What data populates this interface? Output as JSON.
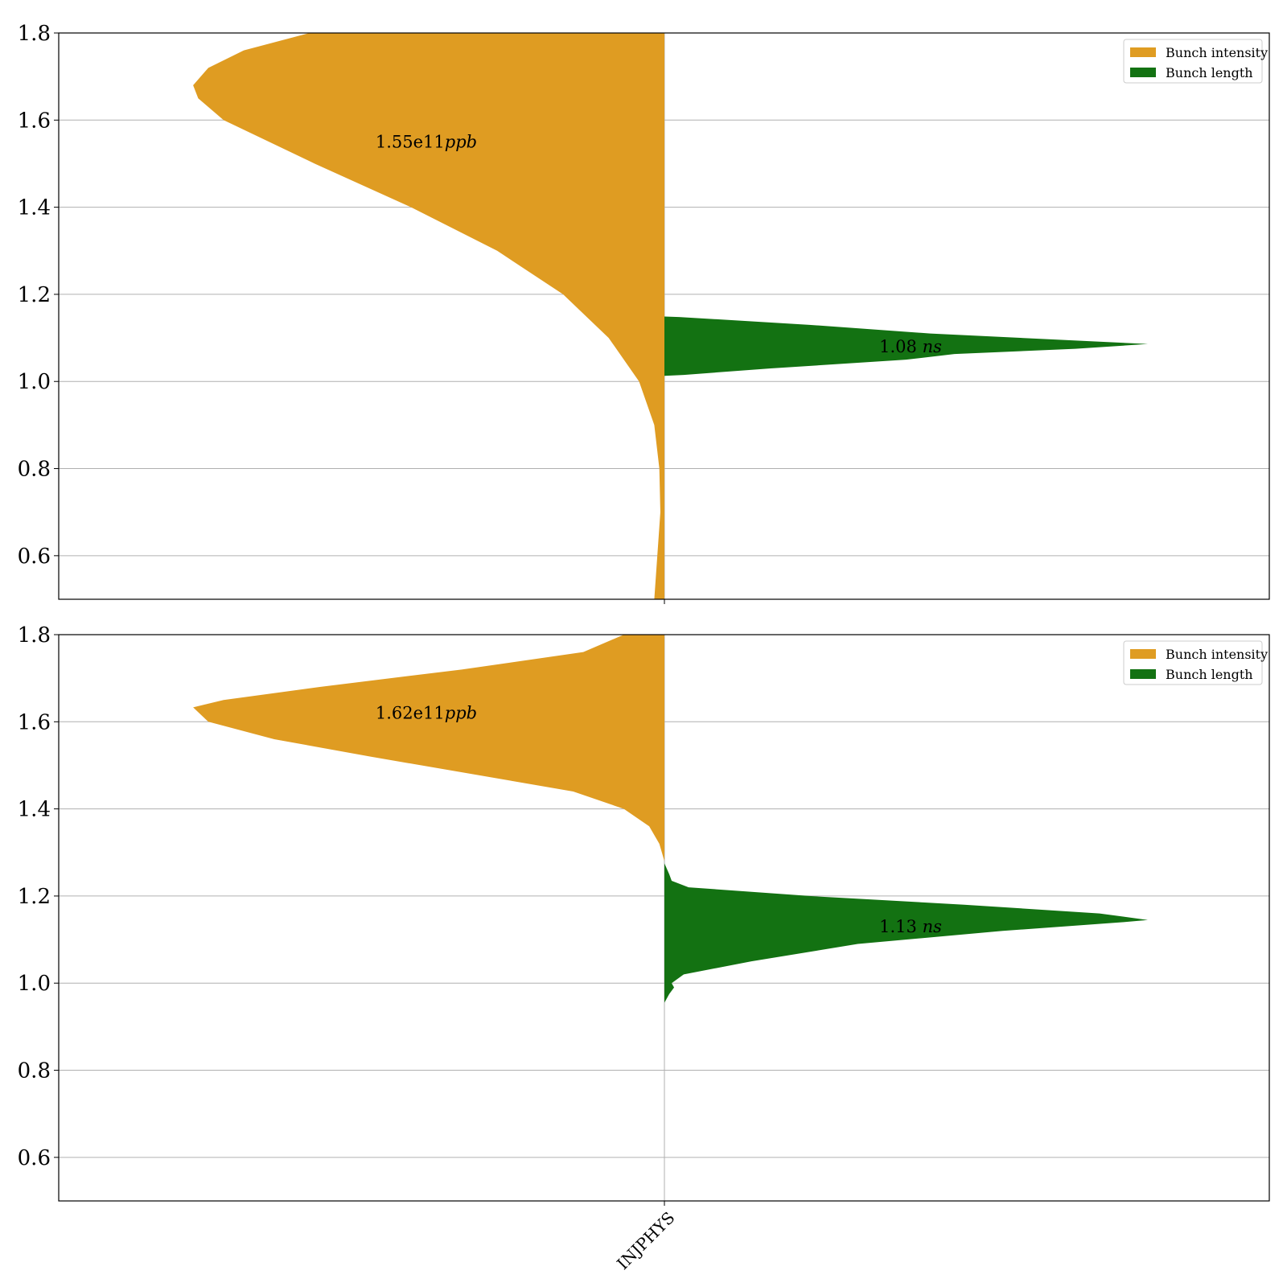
{
  "chart_data": [
    {
      "type": "violin",
      "ylim": [
        0.5,
        1.8
      ],
      "yticks": [
        0.6,
        0.8,
        1.0,
        1.2,
        1.4,
        1.6,
        1.8
      ],
      "categories": [
        ""
      ],
      "grid": true,
      "legend_position": "top-right",
      "series": [
        {
          "name": "Bunch intensity",
          "side": "left",
          "color": "#df9c22",
          "annotation": {
            "value": "1.55e11",
            "unit": "ppb",
            "y": 1.55
          },
          "profile": [
            [
              0.5,
              0.02
            ],
            [
              0.6,
              0.014
            ],
            [
              0.7,
              0.008
            ],
            [
              0.8,
              0.01
            ],
            [
              0.9,
              0.02
            ],
            [
              1.0,
              0.05
            ],
            [
              1.1,
              0.11
            ],
            [
              1.2,
              0.2
            ],
            [
              1.3,
              0.33
            ],
            [
              1.4,
              0.5
            ],
            [
              1.5,
              0.69
            ],
            [
              1.6,
              0.87
            ],
            [
              1.65,
              0.92
            ],
            [
              1.68,
              0.93
            ],
            [
              1.72,
              0.9
            ],
            [
              1.76,
              0.83
            ],
            [
              1.8,
              0.7
            ]
          ]
        },
        {
          "name": "Bunch length",
          "side": "right",
          "color": "#137212",
          "annotation": {
            "value": "1.08",
            "unit": "ns",
            "y": 1.08
          },
          "profile": [
            [
              1.013,
              0.0
            ],
            [
              1.015,
              0.04
            ],
            [
              1.03,
              0.22
            ],
            [
              1.05,
              0.5
            ],
            [
              1.063,
              0.6
            ],
            [
              1.075,
              0.85
            ],
            [
              1.086,
              1.0
            ],
            [
              1.095,
              0.83
            ],
            [
              1.11,
              0.55
            ],
            [
              1.13,
              0.3
            ],
            [
              1.148,
              0.03
            ],
            [
              1.149,
              0.0
            ]
          ]
        }
      ]
    },
    {
      "type": "violin",
      "ylim": [
        0.5,
        1.8
      ],
      "yticks": [
        0.6,
        0.8,
        1.0,
        1.2,
        1.4,
        1.6,
        1.8
      ],
      "categories": [
        "INJPHYS"
      ],
      "grid": true,
      "legend_position": "top-right",
      "series": [
        {
          "name": "Bunch intensity",
          "side": "left",
          "color": "#df9c22",
          "annotation": {
            "value": "1.62e11",
            "unit": "ppb",
            "y": 1.62
          },
          "profile": [
            [
              1.28,
              0.0
            ],
            [
              1.32,
              0.01
            ],
            [
              1.36,
              0.03
            ],
            [
              1.4,
              0.08
            ],
            [
              1.44,
              0.18
            ],
            [
              1.48,
              0.38
            ],
            [
              1.52,
              0.58
            ],
            [
              1.56,
              0.77
            ],
            [
              1.6,
              0.9
            ],
            [
              1.633,
              0.93
            ],
            [
              1.65,
              0.87
            ],
            [
              1.68,
              0.68
            ],
            [
              1.72,
              0.4
            ],
            [
              1.76,
              0.16
            ],
            [
              1.8,
              0.08
            ]
          ]
        },
        {
          "name": "Bunch length",
          "side": "right",
          "color": "#137212",
          "annotation": {
            "value": "1.13",
            "unit": "ns",
            "y": 1.13
          },
          "profile": [
            [
              0.955,
              0.0
            ],
            [
              0.975,
              0.01
            ],
            [
              0.99,
              0.02
            ],
            [
              1.0,
              0.015
            ],
            [
              1.02,
              0.04
            ],
            [
              1.05,
              0.18
            ],
            [
              1.09,
              0.4
            ],
            [
              1.12,
              0.7
            ],
            [
              1.14,
              0.95
            ],
            [
              1.145,
              1.0
            ],
            [
              1.16,
              0.9
            ],
            [
              1.18,
              0.62
            ],
            [
              1.2,
              0.3
            ],
            [
              1.22,
              0.05
            ],
            [
              1.235,
              0.015
            ],
            [
              1.25,
              0.01
            ],
            [
              1.275,
              0.0
            ]
          ]
        }
      ]
    }
  ]
}
